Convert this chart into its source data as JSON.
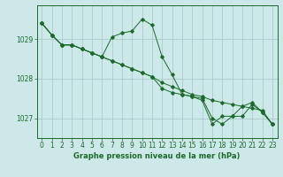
{
  "title": "Graphe pression niveau de la mer (hPa)",
  "background_color": "#cce8e8",
  "grid_color": "#aacccc",
  "line_color": "#1a6b2a",
  "hours": [
    0,
    1,
    2,
    3,
    4,
    5,
    6,
    7,
    8,
    9,
    10,
    11,
    12,
    13,
    14,
    15,
    16,
    17,
    18,
    19,
    20,
    21,
    22,
    23
  ],
  "series1": [
    1029.4,
    1029.1,
    1028.85,
    1028.85,
    1028.75,
    1028.65,
    1028.55,
    1028.45,
    1028.35,
    1028.25,
    1028.15,
    1028.05,
    1027.9,
    1027.8,
    1027.7,
    1027.6,
    1027.55,
    1027.45,
    1027.4,
    1027.35,
    1027.3,
    1027.25,
    1027.2,
    1026.85
  ],
  "series2": [
    1029.4,
    1029.1,
    1028.85,
    1028.85,
    1028.75,
    1028.65,
    1028.55,
    1029.05,
    1029.15,
    1029.2,
    1029.5,
    1029.35,
    1028.55,
    1028.1,
    1027.6,
    1027.55,
    1027.45,
    1026.85,
    1027.05,
    1027.05,
    1027.3,
    1027.4,
    1027.15,
    1026.85
  ],
  "series3": [
    1029.4,
    1029.1,
    1028.85,
    1028.85,
    1028.75,
    1028.65,
    1028.55,
    1028.45,
    1028.35,
    1028.25,
    1028.15,
    1028.05,
    1027.75,
    1027.65,
    1027.6,
    1027.55,
    1027.5,
    1027.0,
    1026.85,
    1027.05,
    1027.05,
    1027.35,
    1027.15,
    1026.85
  ],
  "yticks": [
    1027,
    1028,
    1029
  ],
  "ylim": [
    1026.5,
    1029.85
  ],
  "xlim": [
    -0.5,
    23.5
  ],
  "xticks": [
    0,
    1,
    2,
    3,
    4,
    5,
    6,
    7,
    8,
    9,
    10,
    11,
    12,
    13,
    14,
    15,
    16,
    17,
    18,
    19,
    20,
    21,
    22,
    23
  ],
  "tick_fontsize": 5.5,
  "label_fontsize": 6.0
}
